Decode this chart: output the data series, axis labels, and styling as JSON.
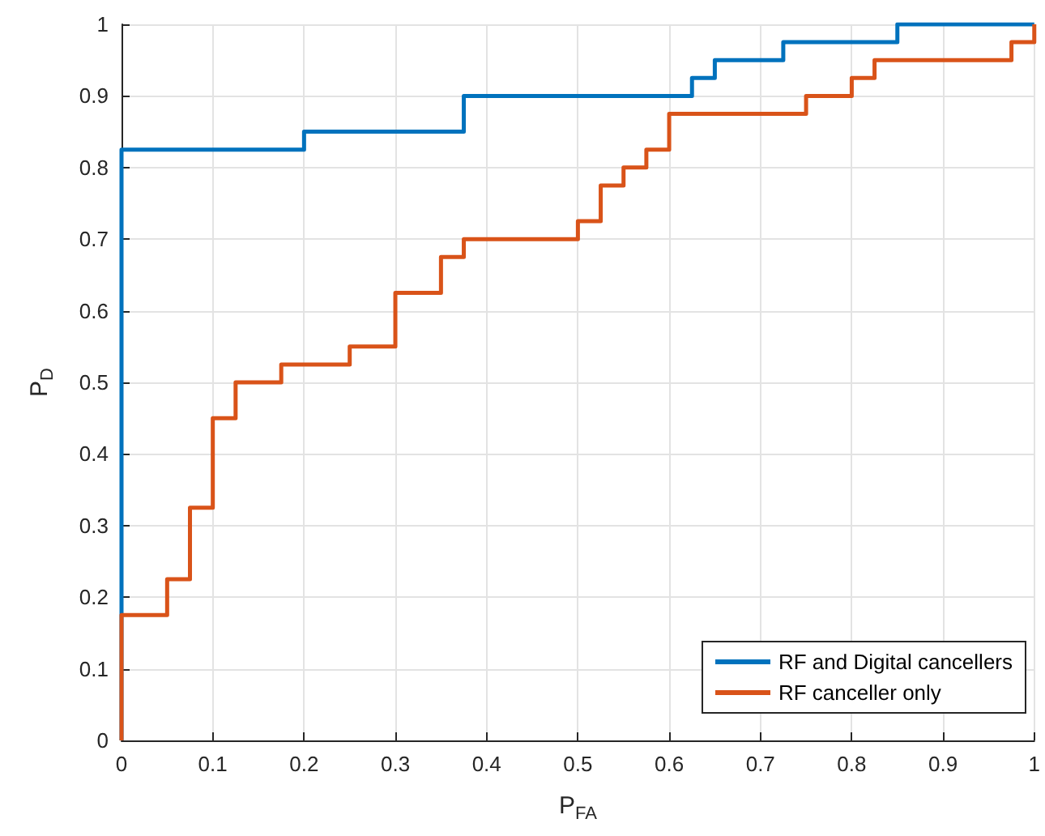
{
  "chart_data": {
    "type": "step",
    "xlabel": "P$_{FA}$",
    "ylabel": "P$_{D}$",
    "xlim": [
      0,
      1
    ],
    "xticks": [
      0,
      0.1,
      0.2,
      0.3,
      0.4,
      0.5,
      0.6,
      0.7,
      0.8,
      0.9,
      1
    ],
    "ylim": [
      0,
      1
    ],
    "yticks": [
      0,
      0.1,
      0.2,
      0.3,
      0.4,
      0.5,
      0.6,
      0.7,
      0.8,
      0.9,
      1
    ],
    "grid": true,
    "legend": "bottom right",
    "line_style": "solid",
    "marker": "none",
    "series": [
      {
        "name": "RF and Digital cancellers",
        "color": "#0072bd",
        "x": [
          0,
          0,
          0.2,
          0.375,
          0.625,
          0.65,
          0.725,
          0.85,
          1
        ],
        "values": [
          0,
          0.825,
          0.85,
          0.9,
          0.925,
          0.95,
          0.975,
          1,
          1
        ]
      },
      {
        "name": "RF canceller only",
        "color": "#d95319",
        "x": [
          0,
          0,
          0.05,
          0.075,
          0.1,
          0.125,
          0.175,
          0.25,
          0.3,
          0.35,
          0.375,
          0.5,
          0.525,
          0.55,
          0.575,
          0.6,
          0.75,
          0.8,
          0.825,
          0.975,
          1
        ],
        "values": [
          0,
          0.175,
          0.225,
          0.325,
          0.45,
          0.5,
          0.525,
          0.55,
          0.625,
          0.675,
          0.7,
          0.725,
          0.775,
          0.8,
          0.825,
          0.875,
          0.9,
          0.925,
          0.95,
          0.975,
          1
        ]
      }
    ]
  }
}
